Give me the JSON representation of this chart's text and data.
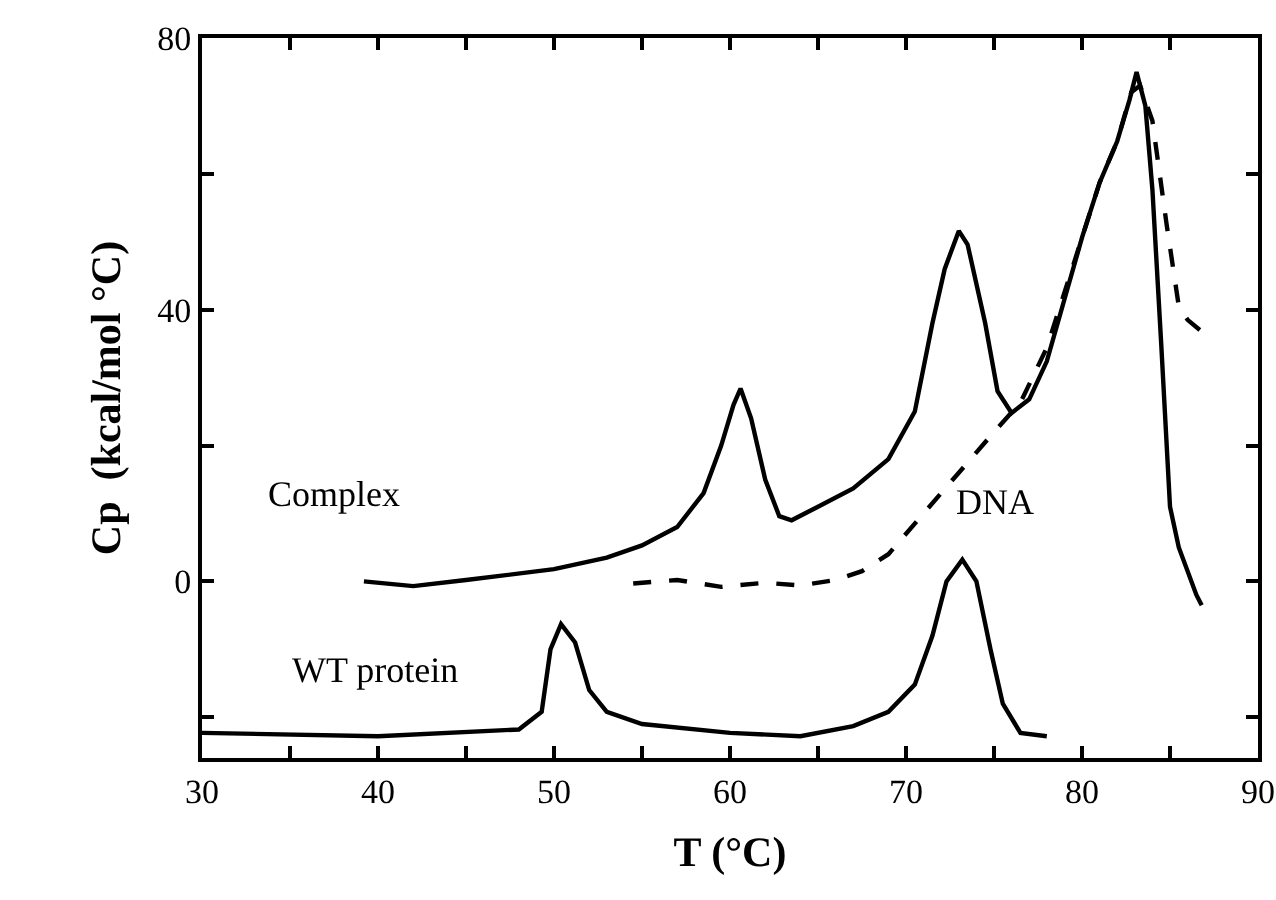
{
  "chart_data": {
    "type": "line",
    "xlabel": "T (°C)",
    "ylabel": "Cp  (kcal/mol °C)",
    "xlim": [
      30,
      90
    ],
    "ylim": [
      -26,
      80
    ],
    "xticks": [
      30,
      {
        "value": 35,
        "label": null
      },
      40,
      {
        "value": 45,
        "label": null
      },
      50,
      {
        "value": 55,
        "label": null
      },
      60,
      {
        "value": 65,
        "label": null
      },
      70,
      {
        "value": 75,
        "label": null
      },
      80,
      {
        "value": 85,
        "label": null
      },
      90
    ],
    "yticks": [
      {
        "value": -20,
        "label": null
      },
      0,
      {
        "value": 20,
        "label": null
      },
      40,
      {
        "value": 60,
        "label": null
      },
      80
    ],
    "grid": false,
    "legend": false,
    "marker": "none",
    "series": [
      {
        "name": "Complex",
        "color": "#000000",
        "line_style": "solid",
        "x": [
          39.2,
          42,
          45,
          50,
          53,
          55,
          57,
          58.5,
          59.5,
          60.2,
          60.6,
          61.2,
          62,
          62.8,
          63.5,
          65,
          67,
          69,
          70.5,
          71.5,
          72.2,
          73,
          73.5,
          74.5,
          75.2,
          76,
          77,
          78,
          79,
          80,
          81,
          82,
          82.7,
          83.1,
          83.6,
          84,
          84.5,
          85,
          85.5,
          86.5,
          86.8
        ],
        "values": [
          0,
          -0.7,
          0.2,
          1.8,
          3.5,
          5.3,
          8,
          13,
          20,
          26,
          28.4,
          24,
          15,
          9.6,
          9,
          11,
          13.7,
          18,
          25,
          38,
          46,
          51.6,
          49.6,
          38,
          28,
          24.8,
          26.8,
          32.4,
          41.5,
          50.6,
          58.7,
          64.8,
          70.9,
          75,
          70,
          57.7,
          35,
          11,
          5,
          -2,
          -3.5
        ]
      },
      {
        "name": "DNA",
        "color": "#000000",
        "line_style": "dashed",
        "x": [
          54.5,
          57,
          59.5,
          62,
          64,
          66,
          67.5,
          69,
          71,
          73,
          75,
          76.5,
          78,
          79,
          80,
          81,
          82,
          82.8,
          83.3,
          84,
          84.8,
          85.5,
          86,
          86.8
        ],
        "values": [
          -0.3,
          0.2,
          -0.8,
          -0.2,
          -0.6,
          0.2,
          1.5,
          4,
          10,
          16,
          22,
          26.3,
          34.4,
          42.5,
          50.6,
          58.7,
          64.8,
          72,
          73,
          67.8,
          52.7,
          40.5,
          38.5,
          36.8
        ]
      },
      {
        "name": "WT protein",
        "color": "#000000",
        "line_style": "solid",
        "x": [
          30,
          40,
          48,
          49.3,
          49.8,
          50.4,
          51.2,
          52,
          53,
          55,
          60,
          64,
          67,
          69,
          70.5,
          71.5,
          72.3,
          73.2,
          74,
          74.8,
          75.5,
          76.5,
          78
        ],
        "values": [
          -22.3,
          -22.8,
          -21.8,
          -19.2,
          -10,
          -6.3,
          -9,
          -16,
          -19.2,
          -21,
          -22.3,
          -22.8,
          -21.3,
          -19.2,
          -15.2,
          -8,
          0,
          3.2,
          0,
          -10,
          -18,
          -22.3,
          -22.8
        ]
      }
    ]
  }
}
